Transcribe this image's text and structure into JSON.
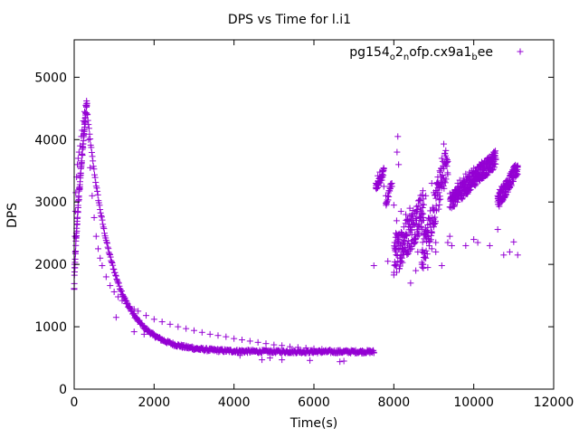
{
  "chart_data": {
    "type": "scatter",
    "title": "DPS vs Time for l.i1",
    "xlabel": "Time(s)",
    "ylabel": "DPS",
    "xlim": [
      0,
      12000
    ],
    "ylim": [
      0,
      5600
    ],
    "xticks": [
      0,
      2000,
      4000,
      6000,
      8000,
      10000,
      12000
    ],
    "yticks": [
      0,
      1000,
      2000,
      3000,
      4000,
      5000
    ],
    "grid": false,
    "legend_position": "top-right",
    "marker": "plus",
    "series": [
      {
        "name": "pg154o2nofp.cx9a1bee",
        "legend": {
          "base1": "pg154",
          "sub1": "o",
          "mid": "2",
          "sub2": "n",
          "tail": "ofp.cx9a1",
          "sub3": "b",
          "end": "ee"
        },
        "color": "#9400d3",
        "points": [
          [
            0,
            1600
          ],
          [
            10,
            2000
          ],
          [
            20,
            2450
          ],
          [
            30,
            2850
          ],
          [
            40,
            3150
          ],
          [
            60,
            3400
          ],
          [
            80,
            3600
          ],
          [
            100,
            3700
          ],
          [
            120,
            3800
          ],
          [
            150,
            3900
          ],
          [
            180,
            4050
          ],
          [
            200,
            4150
          ],
          [
            230,
            4300
          ],
          [
            260,
            4450
          ],
          [
            290,
            4550
          ],
          [
            310,
            4620
          ],
          [
            330,
            4400
          ],
          [
            360,
            4000
          ],
          [
            400,
            3550
          ],
          [
            450,
            3100
          ],
          [
            500,
            2750
          ],
          [
            550,
            2450
          ],
          [
            600,
            2250
          ],
          [
            650,
            2100
          ],
          [
            700,
            1980
          ],
          [
            800,
            1800
          ],
          [
            900,
            1660
          ],
          [
            1000,
            1560
          ],
          [
            1100,
            1480
          ],
          [
            1200,
            1420
          ],
          [
            1300,
            1370
          ],
          [
            1400,
            1320
          ],
          [
            1500,
            1280
          ],
          [
            1600,
            1250
          ],
          [
            1800,
            1180
          ],
          [
            2000,
            1120
          ],
          [
            2200,
            1080
          ],
          [
            2400,
            1040
          ],
          [
            2600,
            1000
          ],
          [
            2800,
            970
          ],
          [
            3000,
            940
          ],
          [
            3200,
            910
          ],
          [
            3400,
            880
          ],
          [
            3600,
            860
          ],
          [
            3800,
            840
          ],
          [
            4000,
            810
          ],
          [
            4200,
            790
          ],
          [
            4400,
            770
          ],
          [
            4600,
            750
          ],
          [
            4800,
            730
          ],
          [
            5000,
            710
          ],
          [
            5200,
            700
          ],
          [
            5400,
            680
          ],
          [
            5600,
            670
          ],
          [
            5800,
            660
          ],
          [
            6000,
            650
          ],
          [
            6200,
            640
          ],
          [
            6400,
            630
          ],
          [
            6600,
            620
          ],
          [
            6800,
            610
          ],
          [
            7000,
            605
          ],
          [
            7200,
            600
          ],
          [
            7400,
            590
          ],
          [
            7500,
            580
          ],
          [
            1050,
            1150
          ],
          [
            1500,
            920
          ],
          [
            1750,
            880
          ],
          [
            2700,
            700
          ],
          [
            2950,
            680
          ],
          [
            3150,
            630
          ],
          [
            4150,
            540
          ],
          [
            4700,
            470
          ],
          [
            4900,
            500
          ],
          [
            5200,
            470
          ],
          [
            5900,
            460
          ],
          [
            6650,
            440
          ],
          [
            6750,
            450
          ],
          [
            7500,
            1980
          ],
          [
            7550,
            3300
          ],
          [
            7600,
            3420
          ],
          [
            7650,
            3480
          ],
          [
            7700,
            3350
          ],
          [
            7750,
            3250
          ],
          [
            7800,
            3100
          ],
          [
            7850,
            2050
          ],
          [
            7900,
            3250
          ],
          [
            7950,
            3300
          ],
          [
            8000,
            2950
          ],
          [
            8020,
            2350
          ],
          [
            8050,
            2500
          ],
          [
            8070,
            2700
          ],
          [
            8080,
            3800
          ],
          [
            8100,
            4050
          ],
          [
            8120,
            3600
          ],
          [
            8150,
            2100
          ],
          [
            8180,
            2850
          ],
          [
            8200,
            2500
          ],
          [
            8230,
            2250
          ],
          [
            8250,
            2600
          ],
          [
            8300,
            2800
          ],
          [
            8350,
            2700
          ],
          [
            8400,
            2900
          ],
          [
            8420,
            1700
          ],
          [
            8450,
            2550
          ],
          [
            8500,
            2400
          ],
          [
            8550,
            1900
          ],
          [
            8600,
            2200
          ],
          [
            8650,
            2600
          ],
          [
            8700,
            2000
          ],
          [
            8750,
            2500
          ],
          [
            8800,
            3100
          ],
          [
            8850,
            1950
          ],
          [
            8900,
            2650
          ],
          [
            8950,
            3300
          ],
          [
            9000,
            3150
          ],
          [
            9050,
            2200
          ],
          [
            9100,
            3400
          ],
          [
            9150,
            3500
          ],
          [
            9200,
            3700
          ],
          [
            9250,
            3930
          ],
          [
            9300,
            3600
          ],
          [
            9350,
            3650
          ],
          [
            9400,
            2450
          ],
          [
            9450,
            2300
          ],
          [
            9500,
            2950
          ],
          [
            9550,
            3200
          ],
          [
            9600,
            3300
          ],
          [
            9650,
            3350
          ],
          [
            9700,
            3250
          ],
          [
            9750,
            3380
          ],
          [
            9800,
            3450
          ],
          [
            9850,
            3400
          ],
          [
            9900,
            3480
          ],
          [
            9950,
            3500
          ],
          [
            10000,
            3540
          ],
          [
            10050,
            3480
          ],
          [
            10100,
            3560
          ],
          [
            10150,
            3600
          ],
          [
            10200,
            3640
          ],
          [
            10250,
            3580
          ],
          [
            10300,
            3660
          ],
          [
            10350,
            3700
          ],
          [
            10400,
            3720
          ],
          [
            10450,
            3680
          ],
          [
            10500,
            3740
          ],
          [
            10550,
            3700
          ],
          [
            10600,
            3100
          ],
          [
            10650,
            3200
          ],
          [
            10700,
            3250
          ],
          [
            10750,
            3280
          ],
          [
            10800,
            3300
          ],
          [
            10850,
            3350
          ],
          [
            10900,
            3380
          ],
          [
            10950,
            3420
          ],
          [
            11000,
            3480
          ],
          [
            11050,
            3520
          ],
          [
            11100,
            3560
          ],
          [
            8100,
            2050
          ],
          [
            8250,
            2350
          ],
          [
            8450,
            2250
          ],
          [
            8800,
            2100
          ],
          [
            8950,
            2250
          ],
          [
            9050,
            2350
          ],
          [
            9200,
            1980
          ],
          [
            9350,
            2350
          ],
          [
            9800,
            2300
          ],
          [
            10000,
            2400
          ],
          [
            10100,
            2350
          ],
          [
            10400,
            2300
          ],
          [
            10600,
            2560
          ],
          [
            10750,
            2150
          ],
          [
            10900,
            2200
          ],
          [
            11000,
            2360
          ],
          [
            11100,
            2150
          ]
        ],
        "segments": [
          {
            "x0": 330,
            "x1": 7500,
            "a": 3800,
            "b": 0.0016,
            "c": 600,
            "n": 520,
            "jitter": 25,
            "curve": "decay"
          },
          {
            "x0": 0,
            "x1": 320,
            "y0": 1600,
            "y1": 4600,
            "n": 90,
            "jitter": 60,
            "curve": "rise"
          },
          {
            "x0": 7550,
            "x1": 7750,
            "y0": 3200,
            "y1": 3500,
            "n": 40,
            "jitter": 60,
            "curve": "linear"
          },
          {
            "x0": 7800,
            "x1": 7950,
            "y0": 2950,
            "y1": 3300,
            "n": 20,
            "jitter": 60,
            "curve": "linear"
          },
          {
            "x0": 8000,
            "x1": 8750,
            "y0": 2100,
            "y1": 2900,
            "n": 160,
            "jitter": 320,
            "curve": "linear"
          },
          {
            "x0": 8700,
            "x1": 9350,
            "y0": 2100,
            "y1": 3700,
            "n": 120,
            "jitter": 280,
            "curve": "linear"
          },
          {
            "x0": 9400,
            "x1": 10550,
            "y0": 3000,
            "y1": 3700,
            "n": 260,
            "jitter": 140,
            "curve": "linear"
          },
          {
            "x0": 10600,
            "x1": 11100,
            "y0": 3000,
            "y1": 3550,
            "n": 120,
            "jitter": 120,
            "curve": "linear"
          }
        ]
      }
    ]
  }
}
